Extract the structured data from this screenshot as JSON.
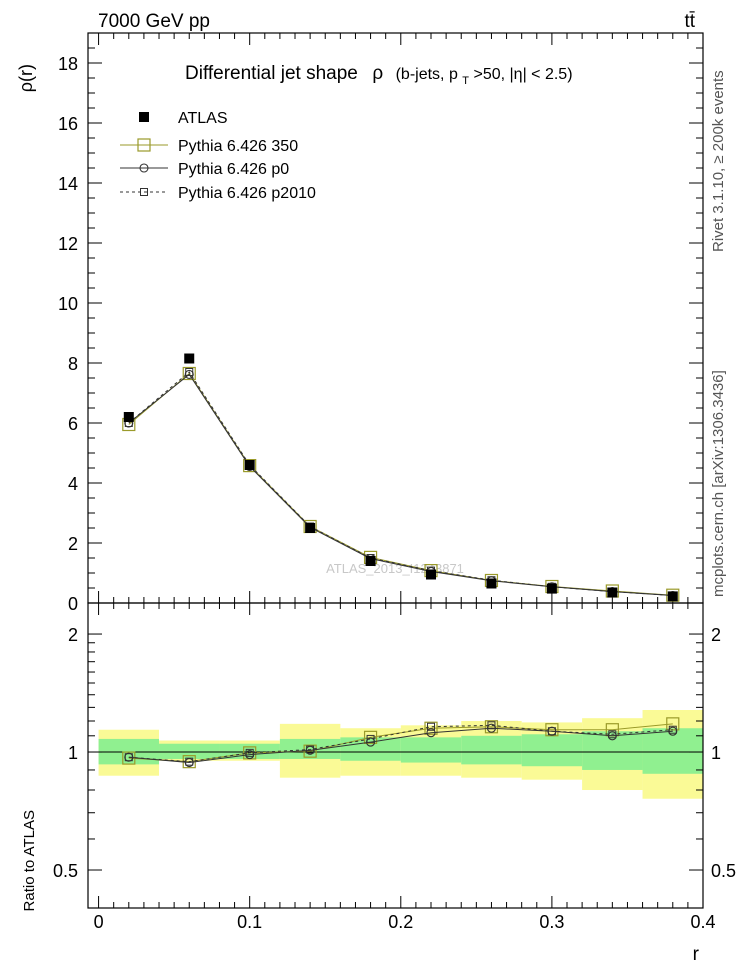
{
  "header": {
    "energy_label": "7000 GeV pp",
    "process_label": "tt̄"
  },
  "side_labels": {
    "rivet": "Rivet 3.1.10, ≥ 200k events",
    "mcplots": "mcplots.cern.ch [arXiv:1306.3436]"
  },
  "watermark": "ATLAS_2013_I1243871",
  "chart_data": [
    {
      "type": "line",
      "panel": "main",
      "title": "Differential jet shape",
      "title_symbol": "ρ",
      "title_detail_pre": "(b-jets, p",
      "title_detail_sub": "T",
      "title_detail_post": ">50, |η| < 2.5)",
      "ylabel": "ρ(r)",
      "xlabel": "r",
      "xlim": [
        -0.007,
        0.4
      ],
      "ylim": [
        0,
        19
      ],
      "yticks": [
        0,
        2,
        4,
        6,
        8,
        10,
        12,
        14,
        16,
        18
      ],
      "xticks": [
        0,
        0.1,
        0.2,
        0.3,
        0.4
      ],
      "x": [
        0.02,
        0.06,
        0.1,
        0.14,
        0.18,
        0.22,
        0.26,
        0.3,
        0.34,
        0.38
      ],
      "legend_position": "top-left",
      "series": [
        {
          "name": "ATLAS",
          "color": "#000000",
          "marker": "filled-square",
          "line": "none",
          "values": [
            6.2,
            8.15,
            4.6,
            2.5,
            1.4,
            0.95,
            0.65,
            0.48,
            0.35,
            0.22
          ]
        },
        {
          "name": "Pythia 6.426 350",
          "color": "#9a9a2a",
          "marker": "open-square",
          "line": "solid",
          "values": [
            5.95,
            7.65,
            4.58,
            2.55,
            1.52,
            1.08,
            0.75,
            0.55,
            0.4,
            0.26
          ]
        },
        {
          "name": "Pythia 6.426 p0",
          "color": "#333333",
          "marker": "open-circle",
          "line": "solid",
          "values": [
            6.0,
            7.62,
            4.55,
            2.52,
            1.48,
            1.05,
            0.74,
            0.54,
            0.38,
            0.25
          ]
        },
        {
          "name": "Pythia 6.426 p2010",
          "color": "#333333",
          "marker": "small-open-square",
          "line": "dashed",
          "values": [
            6.0,
            7.7,
            4.6,
            2.55,
            1.5,
            1.08,
            0.76,
            0.54,
            0.38,
            0.25
          ]
        }
      ]
    },
    {
      "type": "line",
      "panel": "ratio",
      "ylabel": "Ratio to ATLAS",
      "xlabel": "r",
      "xlim": [
        -0.007,
        0.4
      ],
      "ylim": [
        0.4,
        2.4
      ],
      "yscale": "log",
      "yticks": [
        0.5,
        1,
        2
      ],
      "xticks": [
        0,
        0.1,
        0.2,
        0.3,
        0.4
      ],
      "x": [
        0.02,
        0.06,
        0.1,
        0.14,
        0.18,
        0.22,
        0.26,
        0.3,
        0.34,
        0.38
      ],
      "bin_edges": [
        0,
        0.04,
        0.08,
        0.12,
        0.16,
        0.2,
        0.24,
        0.28,
        0.32,
        0.36,
        0.4
      ],
      "bands": {
        "stat": {
          "color": "#90f090",
          "lower": [
            0.93,
            0.96,
            0.96,
            0.96,
            0.95,
            0.94,
            0.93,
            0.92,
            0.9,
            0.88
          ],
          "upper": [
            1.08,
            1.05,
            1.05,
            1.08,
            1.09,
            1.09,
            1.1,
            1.11,
            1.13,
            1.15
          ]
        },
        "total": {
          "color": "#fafa96",
          "lower": [
            0.87,
            0.95,
            0.95,
            0.86,
            0.87,
            0.87,
            0.86,
            0.85,
            0.8,
            0.76
          ],
          "upper": [
            1.14,
            1.07,
            1.07,
            1.18,
            1.15,
            1.17,
            1.2,
            1.19,
            1.22,
            1.28
          ]
        }
      },
      "series": [
        {
          "name": "Pythia 6.426 350",
          "color": "#9a9a2a",
          "marker": "open-square",
          "line": "solid",
          "values": [
            0.965,
            0.945,
            0.995,
            1.005,
            1.09,
            1.15,
            1.16,
            1.14,
            1.14,
            1.18
          ]
        },
        {
          "name": "Pythia 6.426 p0",
          "color": "#333333",
          "marker": "open-circle",
          "line": "solid",
          "values": [
            0.97,
            0.94,
            0.985,
            1.01,
            1.06,
            1.12,
            1.15,
            1.13,
            1.1,
            1.13
          ]
        },
        {
          "name": "Pythia 6.426 p2010",
          "color": "#333333",
          "marker": "small-open-square",
          "line": "dashed",
          "values": [
            0.97,
            0.945,
            0.995,
            1.015,
            1.08,
            1.16,
            1.17,
            1.13,
            1.11,
            1.14
          ]
        }
      ]
    }
  ]
}
